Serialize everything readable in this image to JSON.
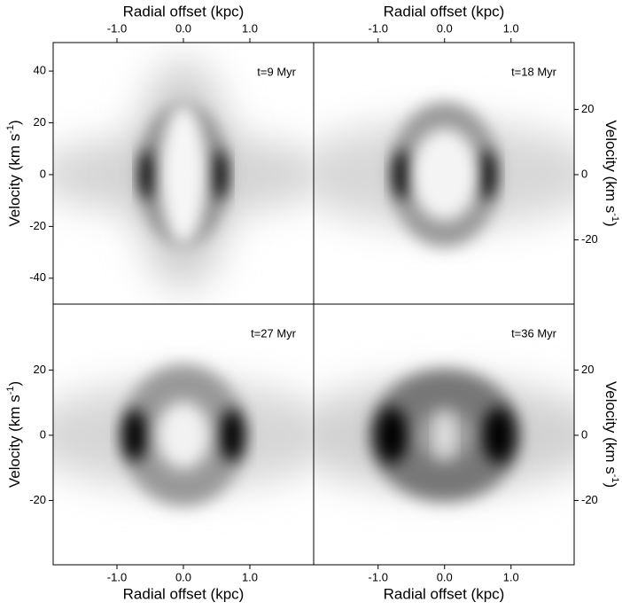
{
  "chart_data": [
    {
      "type": "heatmap",
      "annotation": "t=9 Myr",
      "xlabel": "Radial offset (kpc)",
      "xaxis_position": "top",
      "ylabel": [
        "Velocity (km s",
        "-1",
        ")"
      ],
      "yaxis_position": "left",
      "xlim": [
        -1.96,
        1.96
      ],
      "ylim": [
        -50,
        51
      ],
      "xticks": [
        {
          "value": -1,
          "label": "-1.0"
        },
        {
          "value": 0,
          "label": "0.0"
        },
        {
          "value": 1,
          "label": "1.0"
        }
      ],
      "yticks": [
        -40,
        -20,
        0,
        20,
        40
      ]
    },
    {
      "type": "heatmap",
      "annotation": "t=18 Myr",
      "xlabel": "Radial offset (kpc)",
      "xaxis_position": "top",
      "ylabel": [
        "Velocity (km s",
        "-1",
        ")"
      ],
      "yaxis_position": "right",
      "xlim": [
        -1.97,
        1.95
      ],
      "ylim": [
        -39.7,
        40.5
      ],
      "xticks": [
        {
          "value": -1,
          "label": "-1.0"
        },
        {
          "value": 0,
          "label": "0.0"
        },
        {
          "value": 1,
          "label": "1.0"
        }
      ],
      "yticks": [
        -20,
        0,
        20
      ]
    },
    {
      "type": "heatmap",
      "annotation": "t=27 Myr",
      "xlabel": "Radial offset (kpc)",
      "xaxis_position": "bottom",
      "ylabel": [
        "Velocity (km s",
        "-1",
        ")"
      ],
      "yaxis_position": "left",
      "xlim": [
        -1.96,
        1.96
      ],
      "ylim": [
        -39.7,
        40.2
      ],
      "xticks": [
        {
          "value": -1,
          "label": "-1.0"
        },
        {
          "value": 0,
          "label": "0.0"
        },
        {
          "value": 1,
          "label": "1.0"
        }
      ],
      "yticks": [
        -20,
        0,
        20
      ]
    },
    {
      "type": "heatmap",
      "annotation": "t=36 Myr",
      "xlabel": "Radial offset (kpc)",
      "xaxis_position": "bottom",
      "ylabel": [
        "Velocity (km s",
        "-1",
        ")"
      ],
      "yaxis_position": "right",
      "xlim": [
        -1.97,
        1.95
      ],
      "ylim": [
        -39.7,
        40.2
      ],
      "xticks": [
        {
          "value": -1,
          "label": "-1.0"
        },
        {
          "value": 0,
          "label": "0.0"
        },
        {
          "value": 1,
          "label": "1.0"
        }
      ],
      "yticks": [
        -20,
        0,
        20
      ]
    }
  ]
}
